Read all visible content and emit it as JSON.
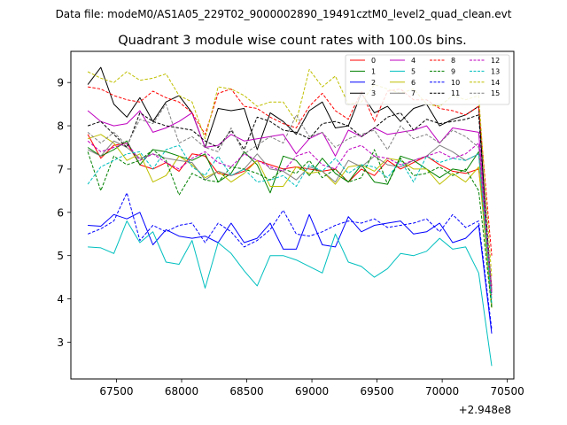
{
  "figure": {
    "suptitle": "Data file: modeM0/AS1A05_229T02_9000002890_19491cztM0_level2_quad_clean.evt",
    "title": "Quadrant 3 module wise count rates with 100.0s bins.",
    "offset_text": "+2.948e8"
  },
  "chart_data": {
    "type": "line",
    "title": "Quadrant 3 module wise count rates with 100.0s bins.",
    "xlabel": "",
    "ylabel": "",
    "x_offset": 294800000,
    "xlim": [
      67150,
      70550
    ],
    "ylim": [
      2.15,
      9.72
    ],
    "xticks": [
      67500,
      68000,
      68500,
      69000,
      69500,
      70000,
      70500
    ],
    "yticks": [
      3,
      4,
      5,
      6,
      7,
      8,
      9
    ],
    "x_start": 67280,
    "x_step": 100,
    "x_end": 70380,
    "legend": {
      "placement": "top-right",
      "columns": 4
    },
    "series": [
      {
        "name": "0",
        "color": "#ff0000",
        "dash": "solid",
        "values": [
          7.8,
          7.25,
          7.55,
          7.6,
          7.1,
          7.0,
          7.15,
          6.95,
          7.35,
          7.3,
          6.9,
          6.85,
          6.95,
          7.2,
          7.1,
          7.0,
          7.05,
          7.0,
          6.95,
          7.0,
          6.7,
          7.0,
          6.85,
          7.2,
          7.0,
          7.15,
          7.3,
          7.1,
          6.95,
          6.9,
          7.0,
          4.3
        ]
      },
      {
        "name": "1",
        "color": "#008000",
        "dash": "solid",
        "values": [
          7.5,
          7.3,
          7.45,
          7.65,
          7.1,
          7.45,
          7.4,
          7.3,
          7.2,
          7.35,
          6.7,
          6.9,
          7.4,
          7.1,
          6.45,
          7.3,
          7.2,
          6.85,
          7.25,
          6.9,
          6.7,
          7.1,
          6.7,
          6.65,
          7.3,
          7.2,
          7.0,
          6.8,
          7.0,
          6.95,
          7.4,
          3.8
        ]
      },
      {
        "name": "2",
        "color": "#0000ff",
        "dash": "solid",
        "values": [
          5.7,
          5.68,
          5.95,
          5.85,
          6.0,
          5.25,
          5.6,
          5.45,
          5.4,
          5.45,
          5.3,
          5.75,
          5.3,
          5.4,
          5.75,
          5.15,
          5.15,
          5.95,
          5.25,
          5.2,
          5.9,
          5.55,
          5.7,
          5.75,
          5.8,
          5.5,
          5.55,
          5.75,
          5.3,
          5.4,
          5.7,
          3.2
        ]
      },
      {
        "name": "3",
        "color": "#000000",
        "dash": "solid",
        "values": [
          8.95,
          9.35,
          8.5,
          8.2,
          8.65,
          8.1,
          8.55,
          8.7,
          8.3,
          7.5,
          8.4,
          8.35,
          8.4,
          7.45,
          8.3,
          8.1,
          7.8,
          8.35,
          8.55,
          7.95,
          8.0,
          8.75,
          8.3,
          8.45,
          8.1,
          8.4,
          8.5,
          8.0,
          8.15,
          8.25,
          8.45,
          3.8
        ]
      },
      {
        "name": "4",
        "color": "#bf00bf",
        "dash": "solid",
        "values": [
          8.35,
          8.1,
          8.0,
          8.05,
          8.35,
          7.85,
          7.95,
          8.1,
          8.3,
          7.5,
          7.55,
          7.8,
          7.65,
          7.7,
          7.75,
          7.8,
          7.35,
          7.7,
          7.85,
          7.3,
          7.9,
          7.75,
          7.95,
          7.8,
          7.85,
          7.9,
          8.0,
          7.6,
          7.95,
          7.9,
          7.85,
          4.2
        ]
      },
      {
        "name": "5",
        "color": "#00bfbf",
        "dash": "solid",
        "values": [
          5.2,
          5.18,
          5.05,
          5.8,
          5.3,
          5.55,
          4.85,
          4.8,
          5.35,
          4.25,
          5.3,
          5.05,
          4.65,
          4.3,
          5.0,
          5.0,
          4.9,
          4.75,
          4.6,
          5.5,
          4.85,
          4.75,
          4.5,
          4.7,
          5.05,
          5.0,
          5.1,
          5.4,
          5.15,
          5.2,
          4.6,
          2.45
        ]
      },
      {
        "name": "6",
        "color": "#bfbf00",
        "dash": "solid",
        "values": [
          7.7,
          7.8,
          7.6,
          7.2,
          7.35,
          6.7,
          6.85,
          7.3,
          7.1,
          6.8,
          6.95,
          6.7,
          6.9,
          7.2,
          6.6,
          6.6,
          7.05,
          6.9,
          6.95,
          6.65,
          7.05,
          7.1,
          6.95,
          7.25,
          7.2,
          7.0,
          7.0,
          6.65,
          6.9,
          6.7,
          7.05,
          3.8
        ]
      },
      {
        "name": "7",
        "color": "#808080",
        "dash": "solid",
        "values": [
          7.45,
          7.3,
          7.65,
          7.5,
          7.25,
          7.35,
          7.25,
          7.2,
          7.15,
          6.75,
          6.95,
          6.85,
          7.0,
          7.35,
          7.0,
          6.95,
          6.75,
          7.05,
          6.95,
          6.7,
          7.2,
          7.05,
          7.3,
          7.1,
          7.05,
          7.2,
          7.3,
          7.55,
          7.4,
          7.2,
          7.35,
          4.0
        ]
      },
      {
        "name": "8",
        "color": "#ff0000",
        "dash": "dashed",
        "values": [
          8.9,
          8.85,
          8.7,
          8.6,
          8.55,
          8.8,
          8.65,
          8.55,
          8.3,
          7.8,
          8.75,
          8.85,
          8.45,
          8.4,
          8.2,
          8.05,
          7.95,
          8.45,
          8.75,
          8.35,
          8.15,
          8.8,
          8.1,
          8.8,
          8.85,
          8.6,
          8.6,
          8.4,
          8.35,
          8.25,
          8.45,
          5.0
        ]
      },
      {
        "name": "9",
        "color": "#008000",
        "dash": "dashed",
        "values": [
          7.4,
          6.5,
          7.3,
          7.1,
          7.2,
          7.45,
          7.2,
          6.4,
          6.9,
          6.75,
          6.7,
          7.05,
          7.0,
          6.9,
          6.75,
          7.0,
          6.9,
          7.2,
          6.8,
          7.0,
          6.7,
          6.8,
          7.45,
          6.65,
          7.25,
          6.85,
          6.9,
          7.05,
          6.85,
          7.0,
          6.5,
          3.8
        ]
      },
      {
        "name": "10",
        "color": "#0000ff",
        "dash": "dashed",
        "values": [
          5.5,
          5.62,
          5.8,
          6.45,
          5.35,
          5.7,
          5.55,
          5.7,
          5.75,
          5.3,
          5.75,
          5.55,
          5.2,
          5.35,
          5.6,
          6.05,
          5.5,
          5.45,
          5.55,
          5.7,
          5.8,
          5.75,
          5.85,
          5.65,
          5.7,
          5.75,
          5.85,
          5.55,
          5.95,
          5.65,
          5.8,
          3.3
        ]
      },
      {
        "name": "11",
        "color": "#000000",
        "dash": "dashed",
        "values": [
          8.0,
          8.1,
          7.8,
          7.5,
          8.3,
          8.1,
          8.0,
          7.95,
          7.9,
          7.65,
          7.5,
          7.9,
          7.45,
          8.2,
          8.1,
          7.9,
          7.85,
          7.7,
          8.05,
          8.1,
          8.0,
          7.75,
          7.95,
          8.2,
          8.3,
          7.9,
          8.15,
          8.05,
          8.1,
          8.15,
          8.25,
          4.1
        ]
      },
      {
        "name": "12",
        "color": "#bf00bf",
        "dash": "dashed",
        "values": [
          7.65,
          7.4,
          7.5,
          7.6,
          7.2,
          7.35,
          7.15,
          7.0,
          7.25,
          7.4,
          7.15,
          7.05,
          7.35,
          7.2,
          7.05,
          6.95,
          7.3,
          7.4,
          7.1,
          7.0,
          7.45,
          7.55,
          7.3,
          7.25,
          7.1,
          7.2,
          7.3,
          7.4,
          7.25,
          7.35,
          7.6,
          4.1
        ]
      },
      {
        "name": "13",
        "color": "#00bfbf",
        "dash": "dashed",
        "values": [
          6.65,
          7.05,
          7.2,
          7.35,
          7.4,
          7.0,
          7.45,
          7.55,
          7.05,
          6.85,
          7.3,
          6.85,
          7.0,
          6.7,
          6.75,
          6.85,
          6.6,
          7.1,
          6.95,
          7.25,
          6.9,
          7.1,
          7.05,
          6.8,
          7.2,
          6.7,
          7.3,
          7.15,
          7.25,
          7.2,
          7.35,
          3.9
        ]
      },
      {
        "name": "14",
        "color": "#bfbf00",
        "dash": "dashed",
        "values": [
          9.25,
          9.1,
          9.0,
          9.25,
          9.05,
          9.1,
          9.2,
          8.7,
          8.55,
          7.7,
          8.9,
          8.85,
          8.7,
          8.45,
          8.55,
          8.55,
          8.1,
          9.3,
          8.9,
          9.15,
          8.5,
          8.55,
          8.95,
          8.85,
          8.75,
          8.85,
          8.5,
          8.45,
          8.7,
          8.6,
          8.7,
          4.5
        ]
      },
      {
        "name": "15",
        "color": "#808080",
        "dash": "dashed",
        "values": [
          7.85,
          7.6,
          7.85,
          7.55,
          8.15,
          8.05,
          8.5,
          7.6,
          7.75,
          7.5,
          7.4,
          7.95,
          7.35,
          7.55,
          7.75,
          7.6,
          8.25,
          7.75,
          7.85,
          7.5,
          7.7,
          7.8,
          7.9,
          7.45,
          8.0,
          7.7,
          7.8,
          7.6,
          7.9,
          7.75,
          7.5,
          4.2
        ]
      }
    ]
  }
}
